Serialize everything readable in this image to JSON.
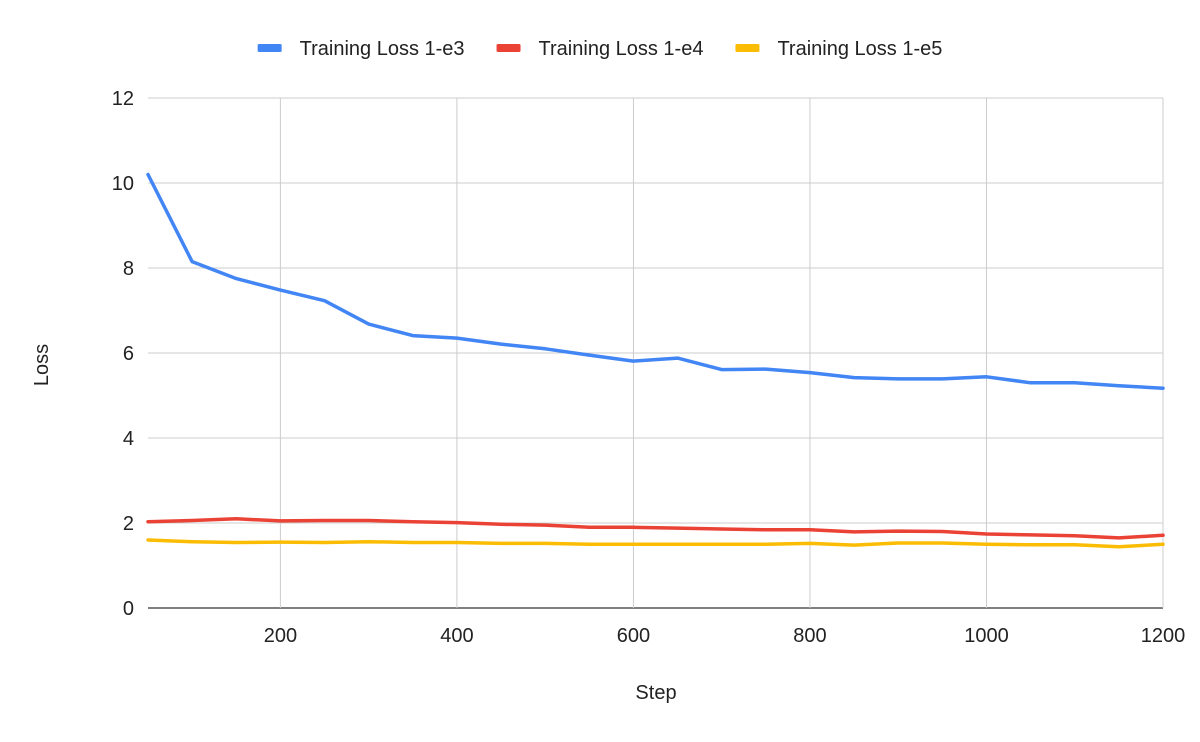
{
  "chart_data": {
    "type": "line",
    "xlabel": "Step",
    "ylabel": "Loss",
    "xlim": [
      50,
      1200
    ],
    "ylim": [
      0,
      12
    ],
    "x_ticks": [
      200,
      400,
      600,
      800,
      1000,
      1200
    ],
    "y_ticks": [
      0,
      2,
      4,
      6,
      8,
      10,
      12
    ],
    "grid": true,
    "legend_position": "top",
    "x": [
      50,
      100,
      150,
      200,
      250,
      300,
      350,
      400,
      450,
      500,
      550,
      600,
      650,
      700,
      750,
      800,
      850,
      900,
      950,
      1000,
      1050,
      1100,
      1150,
      1200
    ],
    "series": [
      {
        "name": "Training Loss 1-e3",
        "color": "#4285F4",
        "values": [
          10.2,
          8.15,
          7.75,
          7.48,
          7.23,
          6.68,
          6.41,
          6.35,
          6.21,
          6.1,
          5.95,
          5.81,
          5.88,
          5.61,
          5.62,
          5.54,
          5.42,
          5.39,
          5.39,
          5.44,
          5.3,
          5.3,
          5.23,
          5.17
        ]
      },
      {
        "name": "Training Loss 1-e4",
        "color": "#EA4335",
        "values": [
          2.03,
          2.06,
          2.1,
          2.05,
          2.06,
          2.06,
          2.03,
          2.01,
          1.97,
          1.95,
          1.9,
          1.9,
          1.88,
          1.86,
          1.84,
          1.84,
          1.79,
          1.81,
          1.8,
          1.74,
          1.72,
          1.7,
          1.65,
          1.71
        ]
      },
      {
        "name": "Training Loss 1-e5",
        "color": "#FBBC04",
        "values": [
          1.6,
          1.56,
          1.54,
          1.55,
          1.54,
          1.56,
          1.54,
          1.54,
          1.52,
          1.52,
          1.5,
          1.5,
          1.5,
          1.5,
          1.5,
          1.52,
          1.48,
          1.53,
          1.53,
          1.5,
          1.49,
          1.49,
          1.44,
          1.5
        ]
      }
    ]
  }
}
